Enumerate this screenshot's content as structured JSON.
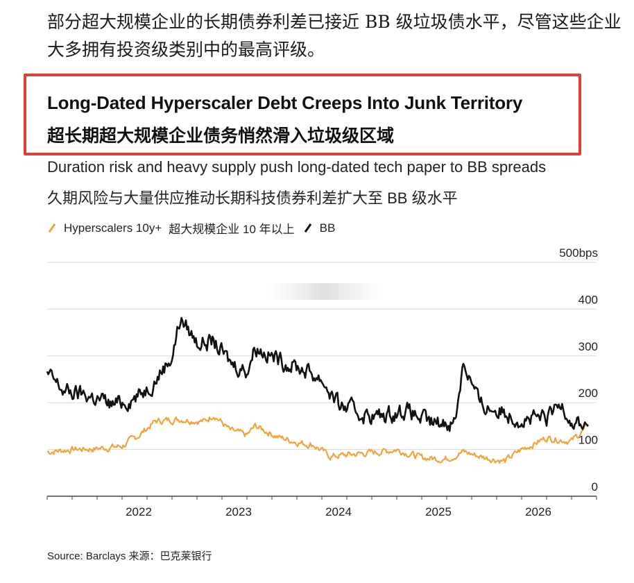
{
  "intro": {
    "text": "部分超大规模企业的长期债券利差已接近 BB 级垃圾债水平，尽管这些企业大多拥有投资级类别中的最高评级。"
  },
  "colors": {
    "highlight_border": "#e0403a",
    "hyperscalers": "#f2a33a",
    "bb": "#111111",
    "grid": "#d9d9d9"
  },
  "chart_data": {
    "type": "line",
    "title": "Long-Dated Hyperscaler Debt Creeps Into Junk Territory",
    "title_zh": "超长期超大规模企业债务悄然滑入垃圾级区域",
    "subtitle": "Duration risk and heavy supply push long-dated tech paper to BB spreads",
    "subtitle_zh": "久期风险与大量供应推动长期科技债券利差扩大至 BB 级水平",
    "x_tick_labels": [
      "2022",
      "2023",
      "2024",
      "2025",
      "2026"
    ],
    "x_range": [
      "2021-02",
      "2026-08"
    ],
    "y_tick_labels": [
      "0",
      "100",
      "200",
      "300",
      "400",
      "500bps"
    ],
    "ylim": [
      0,
      500
    ],
    "grid": true,
    "legend_position": "top-left",
    "series": [
      {
        "name": "Hyperscalers 10y+",
        "name_zh": "超大规模企业 10 年以上",
        "color": "#f2a33a",
        "points": [
          [
            "2021-02",
            95
          ],
          [
            "2021-05",
            100
          ],
          [
            "2021-08",
            102
          ],
          [
            "2021-11",
            107
          ],
          [
            "2022-01",
            130
          ],
          [
            "2022-03",
            160
          ],
          [
            "2022-06",
            165
          ],
          [
            "2022-09",
            160
          ],
          [
            "2022-10",
            175
          ],
          [
            "2022-12",
            140
          ],
          [
            "2023-02",
            130
          ],
          [
            "2023-03",
            150
          ],
          [
            "2023-06",
            125
          ],
          [
            "2023-09",
            112
          ],
          [
            "2023-10",
            110
          ],
          [
            "2023-12",
            85
          ],
          [
            "2024-03",
            90
          ],
          [
            "2024-06",
            95
          ],
          [
            "2024-08",
            100
          ],
          [
            "2024-11",
            82
          ],
          [
            "2025-02",
            80
          ],
          [
            "2025-04",
            95
          ],
          [
            "2025-06",
            85
          ],
          [
            "2025-09",
            75
          ],
          [
            "2025-11",
            100
          ],
          [
            "2026-02",
            125
          ],
          [
            "2026-05",
            118
          ],
          [
            "2026-07",
            150
          ]
        ]
      },
      {
        "name": "BB",
        "color": "#111111",
        "points": [
          [
            "2021-02",
            260
          ],
          [
            "2021-04",
            225
          ],
          [
            "2021-07",
            215
          ],
          [
            "2021-10",
            195
          ],
          [
            "2022-01",
            215
          ],
          [
            "2022-03",
            250
          ],
          [
            "2022-05",
            300
          ],
          [
            "2022-06",
            380
          ],
          [
            "2022-08",
            330
          ],
          [
            "2022-10",
            330
          ],
          [
            "2022-12",
            285
          ],
          [
            "2023-02",
            270
          ],
          [
            "2023-03",
            320
          ],
          [
            "2023-06",
            290
          ],
          [
            "2023-09",
            270
          ],
          [
            "2023-11",
            250
          ],
          [
            "2024-01",
            195
          ],
          [
            "2024-04",
            175
          ],
          [
            "2024-06",
            170
          ],
          [
            "2024-09",
            185
          ],
          [
            "2024-12",
            155
          ],
          [
            "2025-03",
            160
          ],
          [
            "2025-04",
            290
          ],
          [
            "2025-06",
            195
          ],
          [
            "2025-09",
            180
          ],
          [
            "2025-11",
            165
          ],
          [
            "2026-02",
            165
          ],
          [
            "2026-04",
            200
          ],
          [
            "2026-05",
            160
          ],
          [
            "2026-07",
            150
          ]
        ]
      }
    ]
  },
  "source": {
    "text": "Source: Barclays 来源：巴克莱银行"
  }
}
